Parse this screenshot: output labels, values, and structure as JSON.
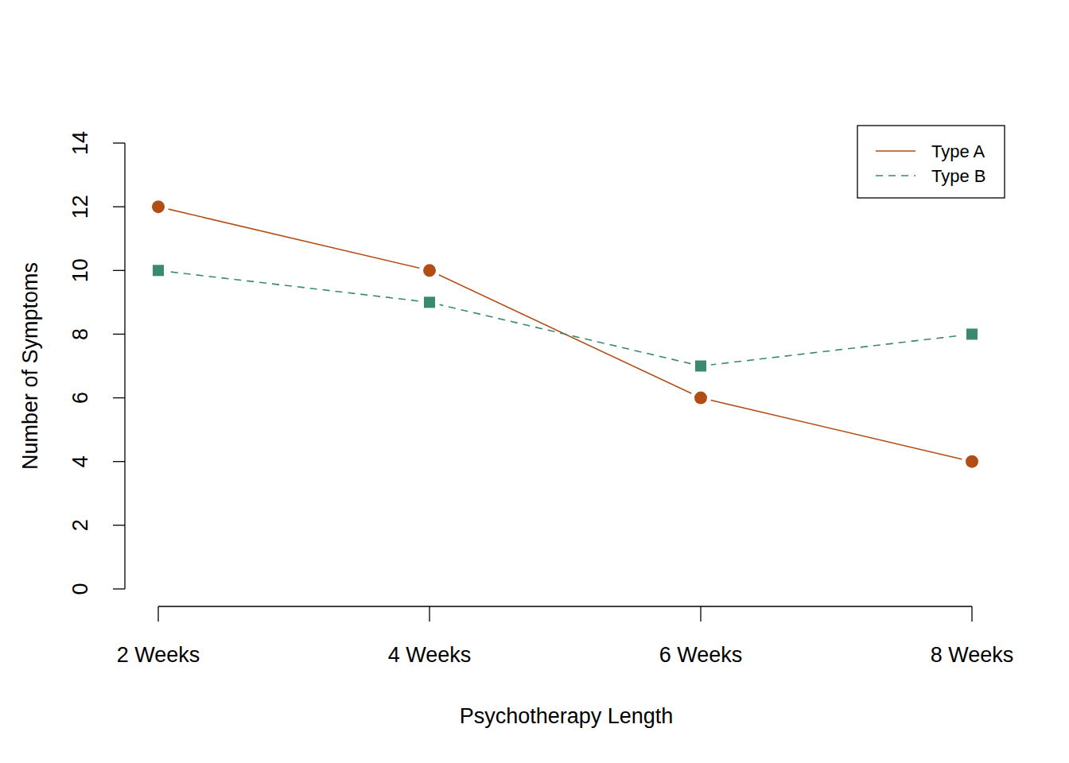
{
  "chart_data": {
    "type": "line",
    "x_label": "Psychotherapy Length",
    "y_label": "Number of Symptoms",
    "categories": [
      "2 Weeks",
      "4 Weeks",
      "6 Weeks",
      "8 Weeks"
    ],
    "series": [
      {
        "name": "Type A",
        "color": "#b34d16",
        "values": [
          12,
          10,
          6,
          4
        ],
        "marker": "circle",
        "line_style": "solid"
      },
      {
        "name": "Type B",
        "color": "#3a8a6e",
        "values": [
          10,
          9,
          7,
          8
        ],
        "marker": "square",
        "line_style": "dashed"
      }
    ],
    "ylim": [
      0,
      14
    ],
    "yticks": [
      0,
      2,
      4,
      6,
      8,
      10,
      12,
      14
    ],
    "grid": false,
    "legend": "top-right"
  }
}
